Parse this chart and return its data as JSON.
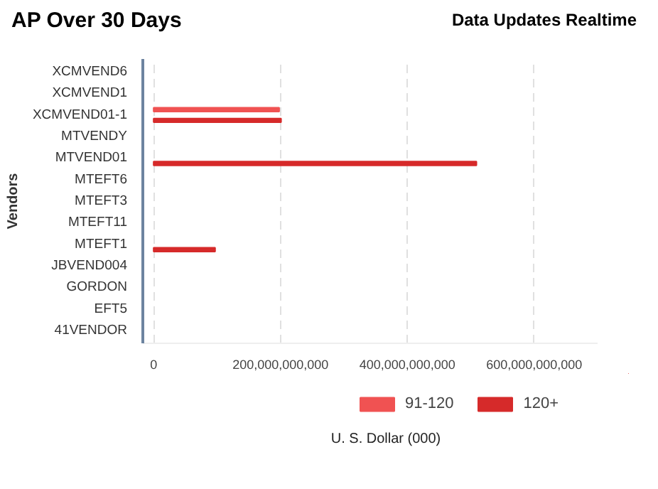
{
  "chart_data": {
    "type": "bar",
    "orientation": "horizontal",
    "title": "AP Over 30 Days",
    "subtitle": "Data Updates Realtime",
    "xlabel": "U. S. Dollar (000)",
    "ylabel": "Vendors",
    "categories": [
      "XCMVEND6",
      "XCMVEND1",
      "XCMVEND01-1",
      "MTVENDY",
      "MTVEND01",
      "MTEFT6",
      "MTEFT3",
      "MTEFT11",
      "MTEFT1",
      "JBVEND004",
      "GORDON",
      "EFT5",
      "41VENDOR"
    ],
    "series": [
      {
        "name": "91-120",
        "color": "#f05252",
        "values": [
          null,
          null,
          198000000000,
          null,
          null,
          null,
          null,
          null,
          null,
          null,
          null,
          null,
          null
        ]
      },
      {
        "name": "120+",
        "color": "#d62a2a",
        "values": [
          null,
          null,
          201000000000,
          null,
          509000000000,
          null,
          null,
          null,
          97000000000,
          null,
          null,
          null,
          null
        ]
      }
    ],
    "xlim": [
      -17000000000,
      700000000000
    ],
    "xticks": [
      {
        "value": 0,
        "label": "0"
      },
      {
        "value": 200000000000,
        "label": "200,000,000,000"
      },
      {
        "value": 400000000000,
        "label": "400,000,000,000"
      },
      {
        "value": 600000000000,
        "label": "600,000,000,000"
      }
    ],
    "grid": "x",
    "legend": "bottom"
  }
}
